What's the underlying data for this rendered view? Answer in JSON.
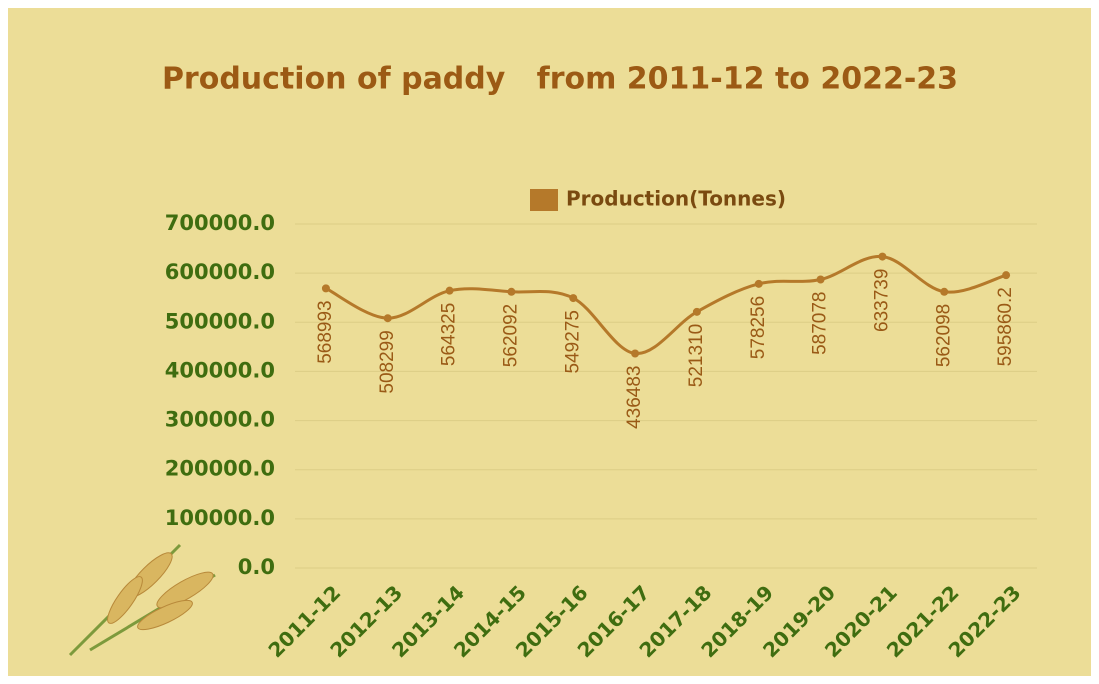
{
  "chart_data": {
    "type": "line",
    "title": "Production of paddy   from 2011-12 to 2022-23",
    "categories": [
      "2011-12",
      "2012-13",
      "2013-14",
      "2014-15",
      "2015-16",
      "2016-17",
      "2017-18",
      "2018-19",
      "2019-20",
      "2020-21",
      "2021-22",
      "2022-23"
    ],
    "series": [
      {
        "name": "Production(Tonnes)",
        "color": "#b5792a",
        "values": [
          568993,
          508299,
          564325,
          562092,
          549275,
          436483,
          521310,
          578256,
          587078,
          633739,
          562098,
          595860.2
        ]
      }
    ],
    "ylim": [
      0,
      700000
    ],
    "yticks": [
      {
        "value": 0,
        "label": "0.0"
      },
      {
        "value": 100000,
        "label": "100000.0"
      },
      {
        "value": 200000,
        "label": "200000.0"
      },
      {
        "value": 300000,
        "label": "300000.0"
      },
      {
        "value": 400000,
        "label": "400000.0"
      },
      {
        "value": 500000,
        "label": "500000.0"
      },
      {
        "value": 600000,
        "label": "600000.0"
      },
      {
        "value": 700000,
        "label": "700000.0"
      }
    ],
    "grid": true,
    "smooth": true,
    "legend": "top"
  }
}
